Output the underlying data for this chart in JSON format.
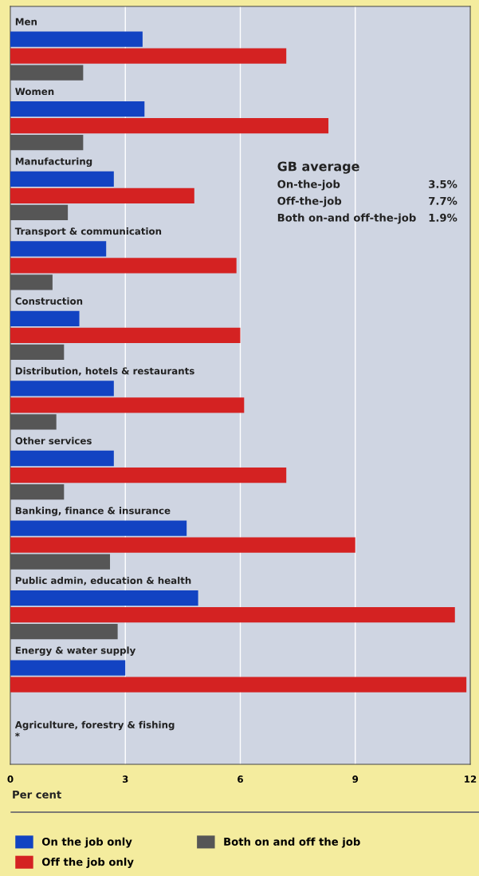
{
  "chart_data": {
    "type": "bar",
    "orientation": "horizontal",
    "categories": [
      "Men",
      "Women",
      "Manufacturing",
      "Transport & communication",
      "Construction",
      "Distribution, hotels & restaurants",
      "Other services",
      "Banking, finance & insurance",
      "Public admin, education & health",
      "Energy & water supply",
      "Agriculture, forestry & fishing\n*"
    ],
    "series": [
      {
        "name": "On the job only",
        "color": "#1243c2",
        "values": [
          3.45,
          3.5,
          2.7,
          2.5,
          1.8,
          2.7,
          2.7,
          4.6,
          4.9,
          3.0,
          null
        ]
      },
      {
        "name": "Off the job only",
        "color": "#d42222",
        "values": [
          7.2,
          8.3,
          4.8,
          5.9,
          6.0,
          6.1,
          7.2,
          9.0,
          11.6,
          11.9,
          null
        ]
      },
      {
        "name": "Both on and off the job",
        "color": "#565656",
        "values": [
          1.9,
          1.9,
          1.5,
          1.1,
          1.4,
          1.2,
          1.4,
          2.6,
          2.8,
          null,
          null
        ]
      }
    ],
    "xlabel": "Per cent",
    "xlim": [
      0,
      12
    ],
    "xticks": [
      0,
      3,
      6,
      9,
      12
    ],
    "grid": "x",
    "legend": "bottom",
    "annotations": [
      "GB average",
      "On-the-job",
      "3.5%",
      "Off-the-job",
      "7.7%",
      "Both on-and off-the-job",
      "1.9%"
    ]
  }
}
